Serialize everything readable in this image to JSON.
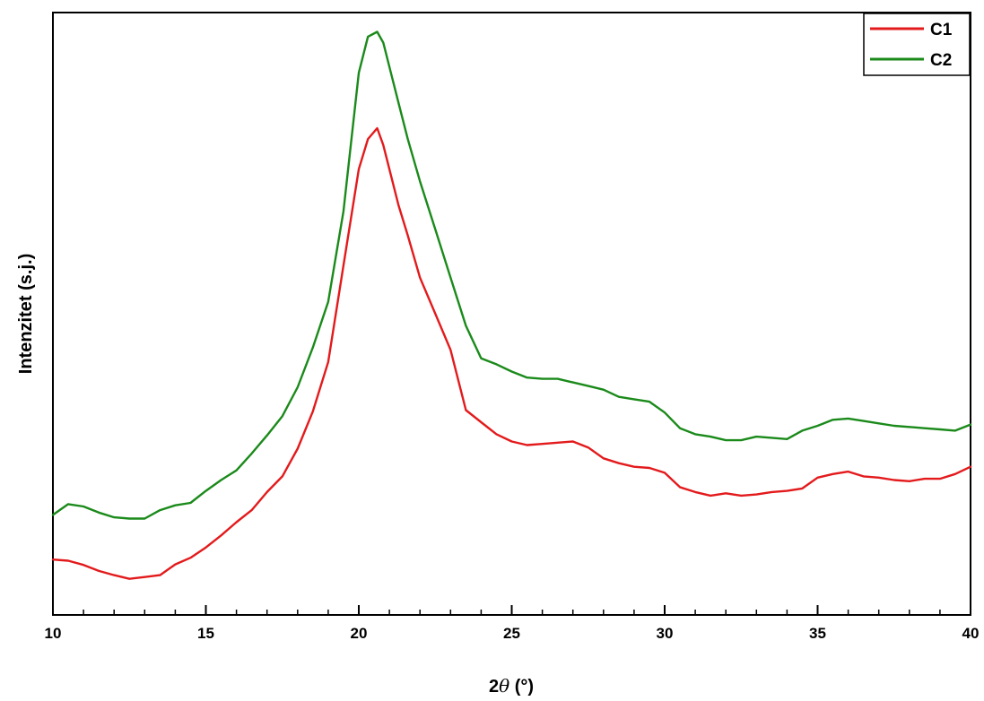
{
  "chart_data": {
    "type": "line",
    "title": "",
    "xlabel_prefix": "2",
    "xlabel_symbol": "θ",
    "xlabel_suffix": " (°)",
    "ylabel": "Intenzitet (s.j.)",
    "xlim": [
      10,
      40
    ],
    "ylim": [
      0,
      100
    ],
    "x_ticks": [
      10,
      15,
      20,
      25,
      30,
      35,
      40
    ],
    "x_minor_step": 1,
    "y_tick_labels": false,
    "grid": false,
    "legend_position": "top-right",
    "series": [
      {
        "name": "C1",
        "color": "#e31a1c",
        "x": [
          10,
          10.5,
          11,
          11.5,
          12,
          12.5,
          13,
          13.5,
          14,
          14.5,
          15,
          15.5,
          16,
          16.5,
          17,
          17.5,
          18,
          18.5,
          19,
          19.5,
          20,
          20.3,
          20.6,
          20.8,
          21,
          21.3,
          21.6,
          22,
          22.5,
          23,
          23.5,
          24,
          24.5,
          25,
          25.5,
          26,
          26.5,
          27,
          27.5,
          28,
          28.5,
          29,
          29.5,
          30,
          30.5,
          31,
          31.5,
          32,
          32.5,
          33,
          33.5,
          34,
          34.5,
          35,
          35.5,
          36,
          36.5,
          37,
          37.5,
          38,
          38.5,
          39,
          39.5,
          40
        ],
        "y": [
          9.2,
          9.0,
          8.3,
          7.3,
          6.6,
          6.0,
          6.3,
          6.6,
          8.4,
          9.5,
          11.2,
          13.2,
          15.4,
          17.4,
          20.4,
          23.0,
          27.6,
          33.8,
          42.0,
          58.0,
          74.0,
          79.0,
          80.8,
          78.0,
          74.0,
          68.0,
          63.0,
          56.0,
          50.0,
          44.0,
          34.0,
          32.0,
          30.0,
          28.8,
          28.2,
          28.4,
          28.6,
          28.8,
          27.8,
          26.0,
          25.2,
          24.6,
          24.4,
          23.6,
          21.2,
          20.4,
          19.8,
          20.2,
          19.8,
          20.0,
          20.4,
          20.6,
          21.0,
          22.8,
          23.4,
          23.8,
          23.0,
          22.8,
          22.4,
          22.2,
          22.6,
          22.6,
          23.4,
          24.6
        ]
      },
      {
        "name": "C2",
        "color": "#1a8a1a",
        "x": [
          10,
          10.5,
          11,
          11.5,
          12,
          12.5,
          13,
          13.5,
          14,
          14.5,
          15,
          15.5,
          16,
          16.5,
          17,
          17.5,
          18,
          18.5,
          19,
          19.5,
          20,
          20.3,
          20.6,
          20.8,
          21,
          21.3,
          21.6,
          22,
          22.5,
          23,
          23.5,
          24,
          24.5,
          25,
          25.5,
          26,
          26.5,
          27,
          27.5,
          28,
          28.5,
          29,
          29.5,
          30,
          30.5,
          31,
          31.5,
          32,
          32.5,
          33,
          33.5,
          34,
          34.5,
          35,
          35.5,
          36,
          36.5,
          37,
          37.5,
          38,
          38.5,
          39,
          39.5,
          40
        ],
        "y": [
          16.6,
          18.4,
          18.0,
          17.0,
          16.2,
          16.0,
          16.0,
          17.4,
          18.2,
          18.6,
          20.6,
          22.4,
          24.0,
          26.8,
          29.8,
          33.0,
          37.8,
          44.4,
          52.0,
          67.0,
          90.0,
          96.0,
          96.8,
          95.0,
          91.0,
          85.0,
          79.0,
          72.0,
          64.0,
          56.0,
          48.0,
          42.6,
          41.6,
          40.4,
          39.4,
          39.2,
          39.2,
          38.6,
          38.0,
          37.4,
          36.2,
          35.8,
          35.4,
          33.6,
          31.0,
          30.0,
          29.6,
          29.0,
          29.0,
          29.6,
          29.4,
          29.2,
          30.6,
          31.4,
          32.4,
          32.6,
          32.2,
          31.8,
          31.4,
          31.2,
          31.0,
          30.8,
          30.6,
          31.6
        ]
      }
    ]
  }
}
